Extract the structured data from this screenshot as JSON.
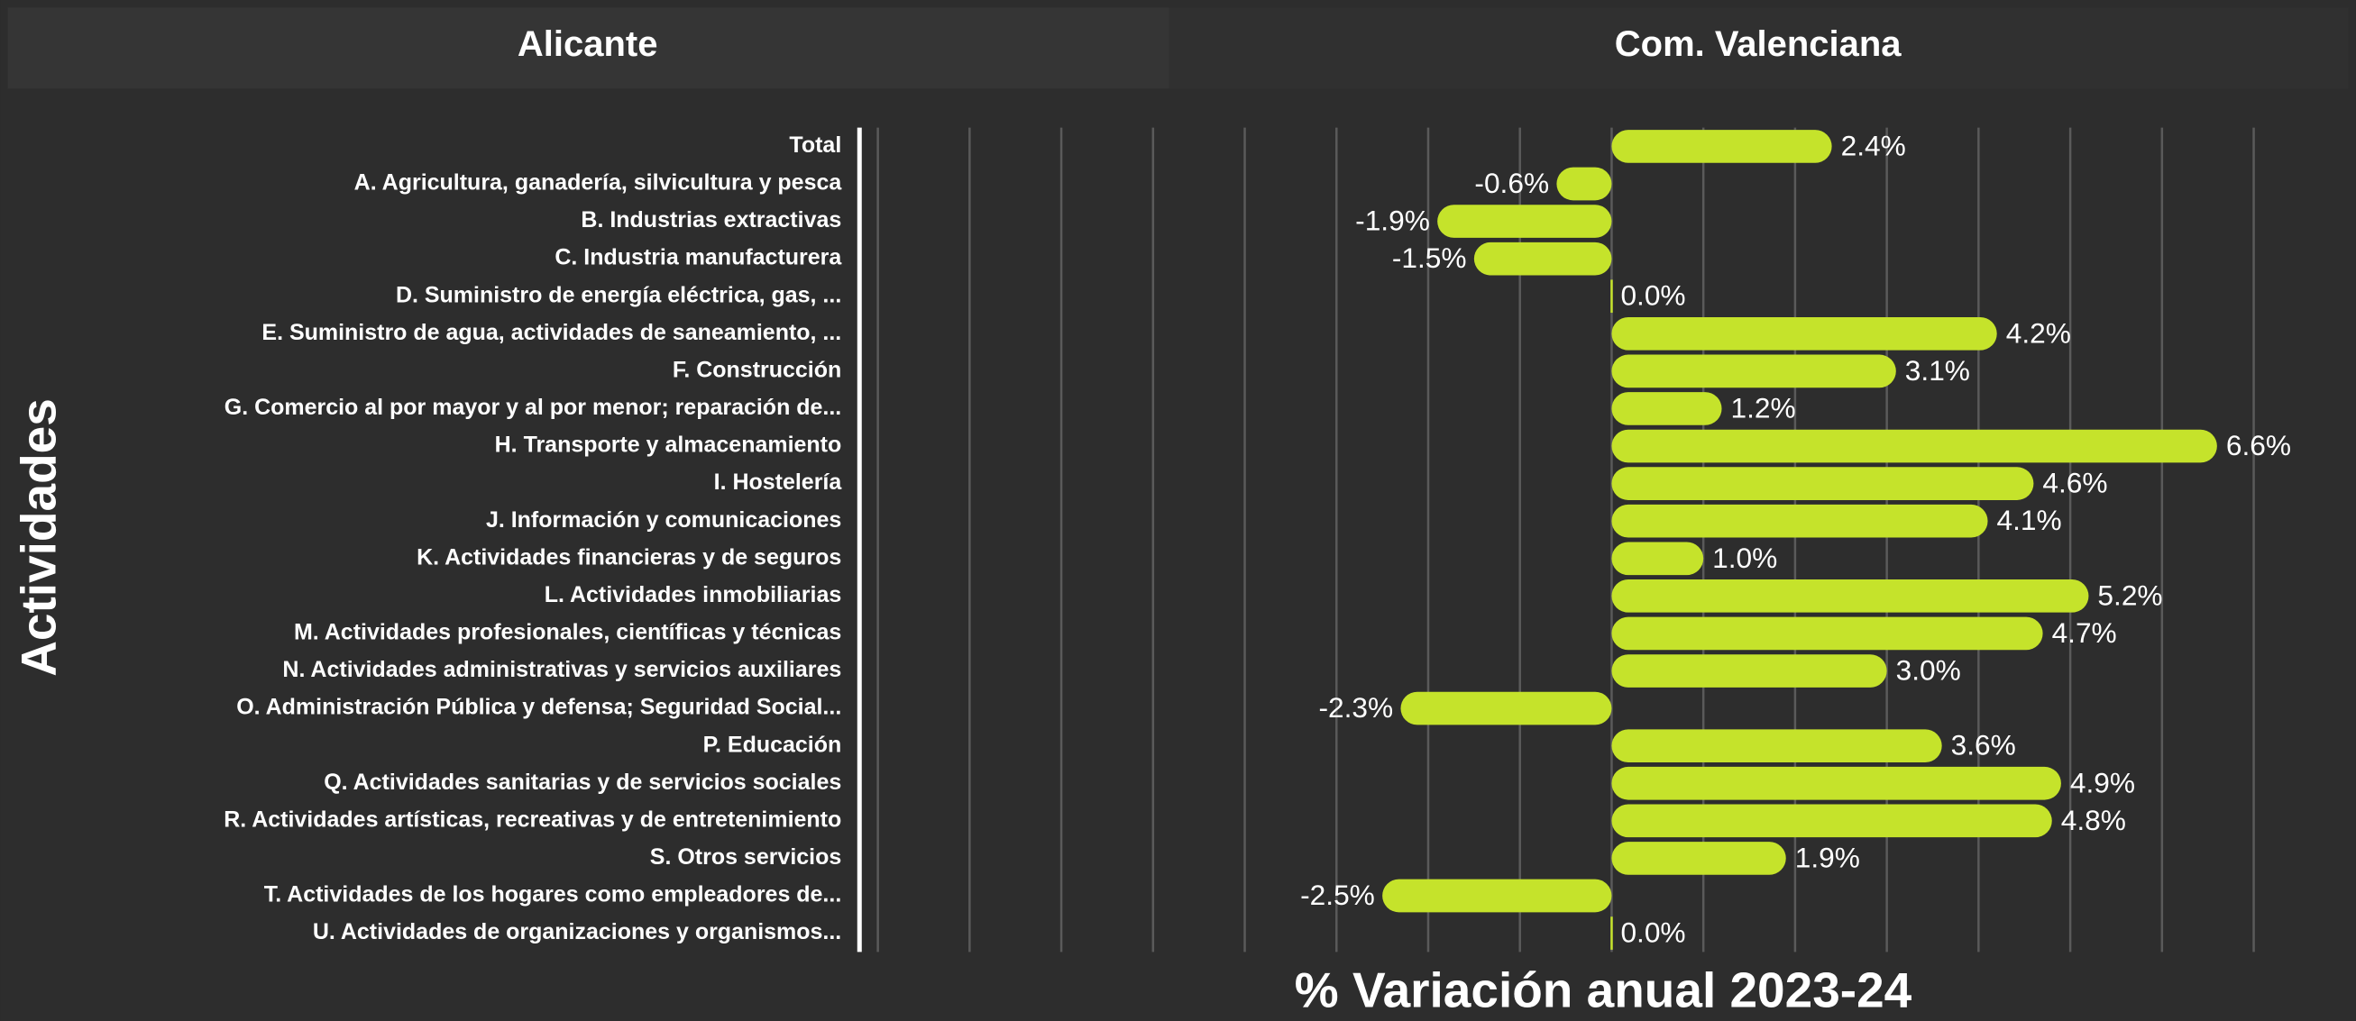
{
  "tabs": [
    "Alicante",
    "Com. Valenciana"
  ],
  "chart_data": {
    "type": "bar",
    "orientation": "horizontal",
    "y_label": "Actividades",
    "x_label": "% Variación anual 2023-24",
    "categories": [
      "Total",
      "A. Agricultura, ganadería, silvicultura y pesca",
      "B. Industrias extractivas",
      "C. Industria manufacturera",
      "D. Suministro de energía eléctrica, gas, ...",
      "E. Suministro de agua, actividades de saneamiento, ...",
      "F. Construcción",
      "G. Comercio al por mayor y al por menor; reparación de...",
      "H. Transporte y almacenamiento",
      "I. Hostelería",
      "J. Información y comunicaciones",
      "K. Actividades financieras y de seguros",
      "L. Actividades inmobiliarias",
      "M. Actividades profesionales, científicas y técnicas",
      "N. Actividades administrativas y servicios auxiliares",
      "O. Administración Pública y defensa; Seguridad Social...",
      "P. Educación",
      "Q. Actividades sanitarias y de servicios sociales",
      "R. Actividades artísticas, recreativas y de entretenimiento",
      "S. Otros servicios",
      "T. Actividades de los hogares como empleadores de...",
      "U. Actividades de organizaciones y organismos..."
    ],
    "values": [
      2.4,
      -0.6,
      -1.9,
      -1.5,
      0.0,
      4.2,
      3.1,
      1.2,
      6.6,
      4.6,
      4.1,
      1.0,
      5.2,
      4.7,
      3.0,
      -2.3,
      3.6,
      4.9,
      4.8,
      1.9,
      -2.5,
      0.0
    ],
    "value_labels": [
      "2.4%",
      "-0.6%",
      "-1.9%",
      "-1.5%",
      "0.0%",
      "4.2%",
      "3.1%",
      "1.2%",
      "6.6%",
      "4.6%",
      "4.1%",
      "1.0%",
      "5.2%",
      "4.7%",
      "3.0%",
      "-2.3%",
      "3.6%",
      "4.9%",
      "4.8%",
      "1.9%",
      "-2.5%",
      "0.0%"
    ],
    "color": "#c5e32b",
    "xlim": [
      -8.2,
      7.9
    ],
    "xticks": [
      -8,
      -7,
      -6,
      -5,
      -4,
      -3,
      -2,
      -1,
      0,
      1,
      2,
      3,
      4,
      5,
      6,
      7
    ],
    "grid": true
  }
}
